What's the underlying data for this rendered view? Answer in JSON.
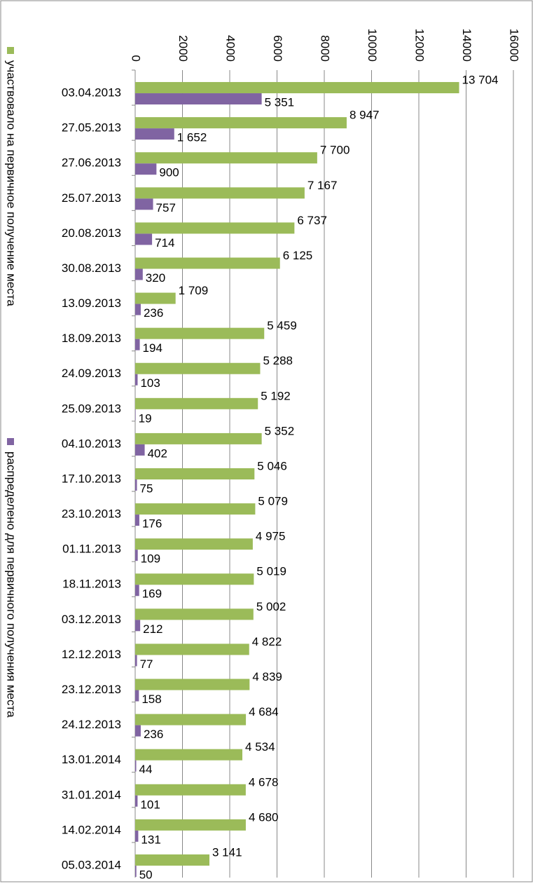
{
  "chart_data": {
    "type": "bar",
    "orientation": "horizontal",
    "categories": [
      "03.04.2013",
      "27.05.2013",
      "27.06.2013",
      "25.07.2013",
      "20.08.2013",
      "30.08.2013",
      "13.09.2013",
      "18.09.2013",
      "24.09.2013",
      "25.09.2013",
      "04.10.2013",
      "17.10.2013",
      "23.10.2013",
      "01.11.2013",
      "18.11.2013",
      "03.12.2013",
      "12.12.2013",
      "23.12.2013",
      "24.12.2013",
      "13.01.2014",
      "31.01.2014",
      "14.02.2014",
      "05.03.2014"
    ],
    "series": [
      {
        "name": "участвовало на первичное получение места",
        "color": "#9bbb59",
        "values": [
          13704,
          8947,
          7700,
          7167,
          6737,
          6125,
          1709,
          5459,
          5288,
          5192,
          5352,
          5046,
          5079,
          4975,
          5019,
          5002,
          4822,
          4839,
          4684,
          4534,
          4678,
          4680,
          3141
        ],
        "value_labels": [
          "13 704",
          "8 947",
          "7 700",
          "7 167",
          "6 737",
          "6 125",
          "1 709",
          "5 459",
          "5 288",
          "5 192",
          "5 352",
          "5 046",
          "5 079",
          "4 975",
          "5 019",
          "5 002",
          "4 822",
          "4 839",
          "4 684",
          "4 534",
          "4 678",
          "4 680",
          "3 141"
        ]
      },
      {
        "name": "распределено для первичного получения места",
        "color": "#8064a2",
        "values": [
          5351,
          1652,
          900,
          757,
          714,
          320,
          236,
          194,
          103,
          19,
          402,
          75,
          176,
          109,
          169,
          212,
          77,
          158,
          236,
          44,
          101,
          131,
          50
        ],
        "value_labels": [
          "5 351",
          "1 652",
          "900",
          "757",
          "714",
          "320",
          "236",
          "194",
          "103",
          "19",
          "402",
          "75",
          "176",
          "109",
          "169",
          "212",
          "77",
          "158",
          "236",
          "44",
          "101",
          "131",
          "50"
        ]
      }
    ],
    "xlim": [
      0,
      16000
    ],
    "xticks": [
      0,
      2000,
      4000,
      6000,
      8000,
      10000,
      12000,
      14000,
      16000
    ],
    "grid": true,
    "legend": "left"
  }
}
